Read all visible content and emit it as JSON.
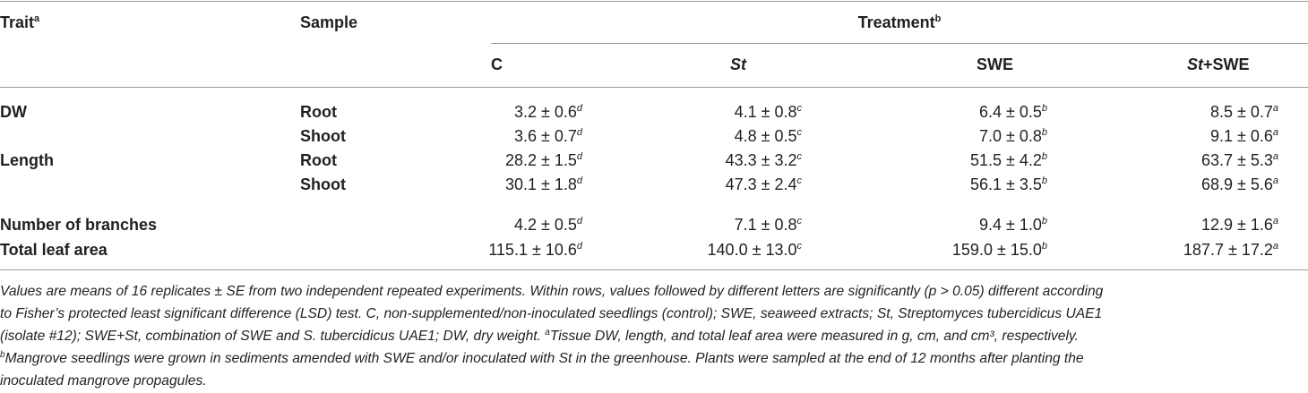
{
  "table": {
    "header": {
      "trait": {
        "text": "Trait",
        "mark": "a"
      },
      "sample": "Sample",
      "treatment": {
        "text": "Treatment",
        "mark": "b"
      },
      "columns": [
        {
          "text": "C"
        },
        {
          "italic": "St"
        },
        {
          "text": "SWE"
        },
        {
          "italic": "St",
          "text": "+SWE"
        }
      ]
    },
    "rows": [
      {
        "trait": "DW",
        "sample": "Root",
        "cells": [
          {
            "value": "3.2 ± 0.6",
            "sup": "d"
          },
          {
            "value": "4.1 ± 0.8",
            "sup": "c"
          },
          {
            "value": "6.4 ± 0.5",
            "sup": "b"
          },
          {
            "value": "8.5 ± 0.7",
            "sup": "a"
          }
        ]
      },
      {
        "sample": "Shoot",
        "cells": [
          {
            "value": "3.6 ± 0.7",
            "sup": "d"
          },
          {
            "value": "4.8 ± 0.5",
            "sup": "c"
          },
          {
            "value": "7.0 ± 0.8",
            "sup": "b"
          },
          {
            "value": "9.1 ± 0.6",
            "sup": "a"
          }
        ]
      },
      {
        "trait": "Length",
        "sample": "Root",
        "cells": [
          {
            "value": "28.2 ± 1.5",
            "sup": "d"
          },
          {
            "value": "43.3 ± 3.2",
            "sup": "c"
          },
          {
            "value": "51.5 ± 4.2",
            "sup": "b"
          },
          {
            "value": "63.7 ± 5.3",
            "sup": "a"
          }
        ]
      },
      {
        "sample": "Shoot",
        "cells": [
          {
            "value": "30.1 ± 1.8",
            "sup": "d"
          },
          {
            "value": "47.3 ± 2.4",
            "sup": "c"
          },
          {
            "value": "56.1 ± 3.5",
            "sup": "b"
          },
          {
            "value": "68.9 ± 5.6",
            "sup": "a"
          }
        ]
      },
      {
        "trait": "Number of branches",
        "cells": [
          {
            "value": "4.2 ± 0.5",
            "sup": "d"
          },
          {
            "value": "7.1 ± 0.8",
            "sup": "c"
          },
          {
            "value": "9.4 ± 1.0",
            "sup": "b"
          },
          {
            "value": "12.9 ± 1.6",
            "sup": "a"
          }
        ]
      },
      {
        "trait": "Total leaf area",
        "cells": [
          {
            "value": "115.1 ± 10.6",
            "sup": "d"
          },
          {
            "value": "140.0 ± 13.0",
            "sup": "c"
          },
          {
            "value": "159.0 ± 15.0",
            "sup": "b"
          },
          {
            "value": "187.7 ± 17.2",
            "sup": "a"
          }
        ]
      }
    ],
    "footnote": [
      {
        "text": "Values are means of 16 replicates ± SE from two independent repeated experiments. Within rows, values followed by different letters are significantly (p > 0.05) different according"
      },
      {
        "text": "to Fisher’s protected least significant difference (LSD) test. C, non-supplemented/non-inoculated seedlings (control); SWE, seaweed extracts; St, Streptomyces tubercidicus UAE1"
      },
      {
        "text": "(isolate #12); SWE+St, combination of SWE and S. tubercidicus UAE1; DW, dry weight. ",
        "mark": "a",
        "after": "Tissue DW, length, and total leaf area were measured in g, cm, and cm³, respectively."
      },
      {
        "mark": "b",
        "after": "Mangrove seedlings were grown in sediments amended with SWE and/or inoculated with St in the greenhouse. Plants were sampled at the end of 12 months after planting the"
      },
      {
        "text": "inoculated mangrove propagules."
      }
    ]
  }
}
